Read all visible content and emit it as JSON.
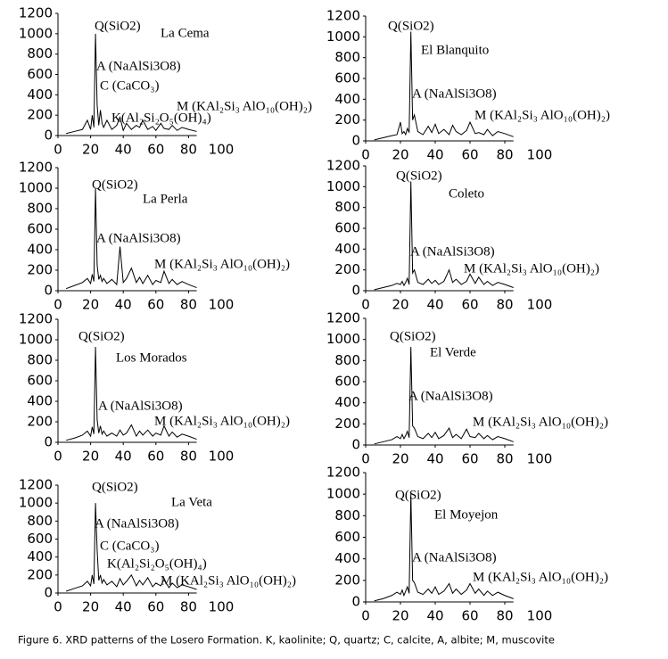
{
  "chart_data": [
    {
      "type": "line",
      "title": "La Cema",
      "annotations": [
        "Q(SiO2)",
        "A (NaAlSi3O8)",
        "C (CaCO₃)",
        "M (KAl₂Si₃ AlO₁₀(OH)₂)",
        "K(Al₂Si₂O₅(OH)₄)"
      ],
      "color": "#000000",
      "x": [
        5,
        10,
        15,
        18,
        20,
        21,
        22,
        23,
        24,
        25,
        26,
        27,
        28,
        30,
        33,
        36,
        38,
        40,
        42,
        45,
        48,
        50,
        52,
        55,
        58,
        60,
        63,
        65,
        68,
        70,
        73,
        76,
        80,
        85
      ],
      "values": [
        20,
        40,
        60,
        150,
        60,
        200,
        80,
        1000,
        300,
        100,
        250,
        120,
        80,
        150,
        60,
        100,
        180,
        50,
        120,
        60,
        100,
        80,
        150,
        60,
        90,
        50,
        120,
        70,
        60,
        100,
        50,
        80,
        60,
        40
      ],
      "xlim": [
        0,
        100
      ],
      "xticks": [
        0,
        20,
        40,
        60,
        80,
        100
      ],
      "ylim": [
        0,
        1200
      ],
      "yticks": [
        0,
        200,
        400,
        600,
        800,
        1000,
        1200
      ]
    },
    {
      "type": "line",
      "title": "El Blanquito",
      "annotations": [
        "Q(SiO2)",
        "A (NaAlSi3O8)",
        "M (KAl₂Si₃ AlO₁₀(OH)₂)"
      ],
      "color": "#000000",
      "x": [
        5,
        10,
        15,
        18,
        20,
        21,
        22,
        23,
        24,
        25,
        26,
        27,
        28,
        30,
        33,
        36,
        38,
        40,
        42,
        45,
        48,
        50,
        52,
        55,
        58,
        60,
        63,
        65,
        68,
        70,
        73,
        76,
        80,
        85
      ],
      "values": [
        10,
        30,
        50,
        60,
        180,
        70,
        90,
        60,
        120,
        80,
        1050,
        200,
        250,
        90,
        60,
        140,
        80,
        160,
        70,
        110,
        60,
        150,
        90,
        60,
        100,
        180,
        70,
        80,
        60,
        110,
        50,
        90,
        70,
        40
      ],
      "xlim": [
        0,
        100
      ],
      "xticks": [
        0,
        20,
        40,
        60,
        80,
        100
      ],
      "ylim": [
        0,
        1200
      ],
      "yticks": [
        0,
        200,
        400,
        600,
        800,
        1000,
        1200
      ]
    },
    {
      "type": "line",
      "title": "La Perla",
      "annotations": [
        "Q(SiO2)",
        "A (NaAlSi3O8)",
        "M (KAl₂Si₃ AlO₁₀(OH)₂)"
      ],
      "color": "#000000",
      "x": [
        5,
        10,
        15,
        18,
        20,
        21,
        22,
        23,
        24,
        25,
        26,
        27,
        28,
        30,
        33,
        36,
        38,
        40,
        42,
        45,
        48,
        50,
        52,
        55,
        58,
        60,
        63,
        65,
        68,
        70,
        73,
        76,
        80,
        85
      ],
      "values": [
        20,
        50,
        80,
        120,
        70,
        160,
        90,
        1000,
        250,
        110,
        150,
        90,
        120,
        70,
        110,
        60,
        430,
        80,
        120,
        220,
        80,
        130,
        70,
        150,
        60,
        100,
        80,
        190,
        70,
        110,
        60,
        90,
        60,
        30
      ],
      "xlim": [
        0,
        100
      ],
      "xticks": [
        0,
        20,
        40,
        60,
        80,
        100
      ],
      "ylim": [
        0,
        1200
      ],
      "yticks": [
        0,
        200,
        400,
        600,
        800,
        1000,
        1200
      ]
    },
    {
      "type": "line",
      "title": "Coleto",
      "annotations": [
        "Q(SiO2)",
        "A (NaAlSi3O8)",
        "M (KAl₂Si₃ AlO₁₀(OH)₂)"
      ],
      "color": "#000000",
      "x": [
        5,
        10,
        15,
        18,
        20,
        21,
        22,
        23,
        24,
        25,
        26,
        27,
        28,
        30,
        33,
        36,
        38,
        40,
        42,
        45,
        48,
        50,
        52,
        55,
        58,
        60,
        63,
        65,
        68,
        70,
        73,
        76,
        80,
        85
      ],
      "values": [
        10,
        30,
        50,
        70,
        60,
        90,
        50,
        80,
        120,
        60,
        1050,
        170,
        200,
        80,
        60,
        110,
        70,
        100,
        60,
        90,
        200,
        80,
        110,
        60,
        90,
        160,
        70,
        130,
        60,
        90,
        50,
        80,
        60,
        30
      ],
      "xlim": [
        0,
        100
      ],
      "xticks": [
        0,
        20,
        40,
        60,
        80,
        100
      ],
      "ylim": [
        0,
        1200
      ],
      "yticks": [
        0,
        200,
        400,
        600,
        800,
        1000,
        1200
      ]
    },
    {
      "type": "line",
      "title": "Los Morados",
      "annotations": [
        "Q(SiO2)",
        "A (NaAlSi3O8)",
        "M (KAl₂Si₃ AlO₁₀(OH)₂)"
      ],
      "color": "#000000",
      "x": [
        5,
        10,
        15,
        18,
        20,
        21,
        22,
        23,
        24,
        25,
        26,
        27,
        28,
        30,
        33,
        36,
        38,
        40,
        42,
        45,
        48,
        50,
        52,
        55,
        58,
        60,
        63,
        65,
        68,
        70,
        73,
        76,
        80,
        85
      ],
      "values": [
        20,
        40,
        70,
        110,
        60,
        150,
        80,
        930,
        220,
        90,
        160,
        80,
        110,
        60,
        90,
        60,
        120,
        70,
        90,
        170,
        60,
        110,
        70,
        120,
        60,
        90,
        70,
        160,
        60,
        100,
        50,
        80,
        60,
        30
      ],
      "xlim": [
        0,
        100
      ],
      "xticks": [
        0,
        20,
        40,
        60,
        80,
        100
      ],
      "ylim": [
        0,
        1200
      ],
      "yticks": [
        0,
        200,
        400,
        600,
        800,
        1000,
        1200
      ]
    },
    {
      "type": "line",
      "title": "El Verde",
      "annotations": [
        "Q(SiO2)",
        "A (NaAlSi3O8)",
        "M (KAl₂Si₃ AlO₁₀(OH)₂)"
      ],
      "color": "#000000",
      "x": [
        5,
        10,
        15,
        18,
        20,
        21,
        22,
        23,
        24,
        25,
        26,
        27,
        28,
        30,
        33,
        36,
        38,
        40,
        42,
        45,
        48,
        50,
        52,
        55,
        58,
        60,
        63,
        65,
        68,
        70,
        73,
        76,
        80,
        85
      ],
      "values": [
        10,
        30,
        50,
        80,
        60,
        100,
        60,
        90,
        130,
        70,
        930,
        180,
        160,
        80,
        60,
        110,
        70,
        120,
        60,
        90,
        160,
        70,
        100,
        60,
        150,
        80,
        70,
        110,
        60,
        90,
        50,
        80,
        60,
        30
      ],
      "xlim": [
        0,
        100
      ],
      "xticks": [
        0,
        20,
        40,
        60,
        80,
        100
      ],
      "ylim": [
        0,
        1200
      ],
      "yticks": [
        0,
        200,
        400,
        600,
        800,
        1000,
        1200
      ]
    },
    {
      "type": "line",
      "title": "La Veta",
      "annotations": [
        "Q(SiO2)",
        "A (NaAlSi3O8)",
        "C (CaCO₃)",
        "K(Al₂Si₂O₅(OH)₄)",
        "M (KAl₂Si₃ AlO₁₀(OH)₂)"
      ],
      "color": "#000000",
      "x": [
        5,
        10,
        15,
        18,
        20,
        21,
        22,
        23,
        24,
        25,
        26,
        27,
        28,
        30,
        33,
        36,
        38,
        40,
        42,
        45,
        48,
        50,
        52,
        55,
        58,
        60,
        63,
        65,
        68,
        70,
        73,
        76,
        80,
        85
      ],
      "values": [
        20,
        50,
        80,
        130,
        80,
        200,
        100,
        1000,
        480,
        140,
        200,
        110,
        150,
        90,
        130,
        70,
        160,
        90,
        130,
        200,
        80,
        140,
        90,
        170,
        70,
        110,
        80,
        150,
        60,
        110,
        60,
        90,
        70,
        40
      ],
      "xlim": [
        0,
        100
      ],
      "xticks": [
        0,
        20,
        40,
        60,
        80,
        100
      ],
      "ylim": [
        0,
        1200
      ],
      "yticks": [
        0,
        200,
        400,
        600,
        800,
        1000,
        1200
      ]
    },
    {
      "type": "line",
      "title": "El Moyejon",
      "annotations": [
        "Q(SiO2)",
        "A (NaAlSi3O8)",
        "M (KAl₂Si₃ AlO₁₀(OH)₂)"
      ],
      "color": "#000000",
      "x": [
        5,
        10,
        15,
        18,
        20,
        21,
        22,
        23,
        24,
        25,
        26,
        27,
        28,
        30,
        33,
        36,
        38,
        40,
        42,
        45,
        48,
        50,
        52,
        55,
        58,
        60,
        63,
        65,
        68,
        70,
        73,
        76,
        80,
        85
      ],
      "values": [
        10,
        30,
        60,
        90,
        70,
        110,
        60,
        100,
        140,
        80,
        1000,
        200,
        180,
        90,
        70,
        120,
        80,
        140,
        70,
        100,
        170,
        80,
        120,
        70,
        110,
        170,
        80,
        120,
        60,
        100,
        60,
        90,
        60,
        30
      ],
      "xlim": [
        0,
        100
      ],
      "xticks": [
        0,
        20,
        40,
        60,
        80,
        100
      ],
      "ylim": [
        0,
        1200
      ],
      "yticks": [
        0,
        200,
        400,
        600,
        800,
        1000,
        1200
      ]
    }
  ],
  "caption": "Figure 6. XRD patterns of the Losero Formation. K, kaolinite; Q, quartz; C, calcite, A, albite; M, muscovite"
}
